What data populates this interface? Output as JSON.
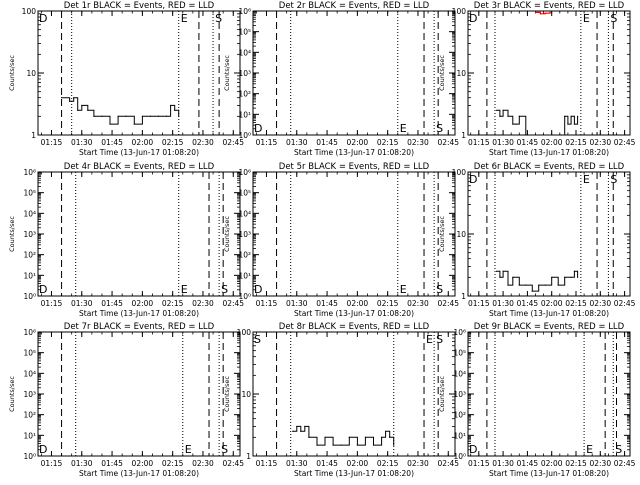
{
  "chart_data": [
    {
      "type": "line",
      "title": "Det 1r BLACK = Events, RED = LLD",
      "xlabel": "Start Time (13-Jun-17 01:08:20)",
      "ylabel": "Counts/sec",
      "yscale": "log",
      "ylim": [
        1,
        100
      ],
      "yticks": [
        "1",
        "10",
        "100"
      ],
      "xticks": [
        "01:15",
        "01:30",
        "01:45",
        "02:00",
        "02:15",
        "02:30",
        "02:45"
      ],
      "xlim": [
        "01:08:20",
        "02:48:20"
      ],
      "markers": {
        "dashed": [
          "01:20",
          "02:28",
          "02:38"
        ],
        "dotted": [
          "01:25",
          "02:18",
          "02:35"
        ]
      },
      "marker_labels": [
        {
          "text": "D",
          "at": "left-top"
        },
        {
          "text": "E",
          "at": "02:18"
        },
        {
          "text": "S",
          "at": "02:35"
        }
      ],
      "series": [
        {
          "color": "#000000",
          "x": [
            "01:20",
            "01:24",
            "01:26",
            "01:28",
            "01:30",
            "01:33",
            "01:36",
            "01:40",
            "01:44",
            "01:48",
            "01:52",
            "01:56",
            "02:00",
            "02:04",
            "02:08",
            "02:12",
            "02:14",
            "02:16",
            "02:18"
          ],
          "values": [
            4,
            3.5,
            4,
            2.5,
            3,
            2.5,
            2,
            2,
            1.5,
            2,
            2,
            1.5,
            2,
            2,
            2,
            2,
            3,
            2.5,
            2
          ]
        }
      ]
    },
    {
      "type": "line",
      "title": "Det 2r BLACK = Events, RED = LLD",
      "xlabel": "Start Time (13-Jun-17 01:08:20)",
      "ylabel": "Counts/sec",
      "yscale": "log",
      "ylim": [
        1,
        1000000
      ],
      "yticks": [
        "10⁰",
        "10¹",
        "10²",
        "10³",
        "10⁴",
        "10⁵",
        "10⁶"
      ],
      "xticks": [
        "01:15",
        "01:30",
        "01:45",
        "02:00",
        "02:15",
        "02:30",
        "02:45"
      ],
      "xlim": [
        "01:08:20",
        "02:48:20"
      ],
      "markers": {
        "dashed": [
          "01:20",
          "02:33",
          "02:40"
        ],
        "dotted": [
          "01:27",
          "02:20",
          "02:38"
        ]
      },
      "marker_labels": [
        {
          "text": "D",
          "at": "left-bottom"
        },
        {
          "text": "E",
          "at": "02:20"
        },
        {
          "text": "S",
          "at": "02:38"
        }
      ],
      "series": []
    },
    {
      "type": "line",
      "title": "Det 3r BLACK = Events, RED = LLD",
      "xlabel": "Start Time (13-Jun-17 01:08:20)",
      "ylabel": "Counts/sec",
      "yscale": "log",
      "ylim": [
        1,
        100
      ],
      "yticks": [
        "1",
        "10",
        "100"
      ],
      "xticks": [
        "01:15",
        "01:30",
        "01:45",
        "02:00",
        "02:15",
        "02:30",
        "02:45"
      ],
      "xlim": [
        "01:08:20",
        "02:48:20"
      ],
      "markers": {
        "dashed": [
          "01:20",
          "02:28",
          "02:38"
        ],
        "dotted": [
          "01:25",
          "02:18",
          "02:35"
        ]
      },
      "marker_labels": [
        {
          "text": "D",
          "at": "left-top"
        },
        {
          "text": "E",
          "at": "02:18"
        },
        {
          "text": "S",
          "at": "02:35"
        }
      ],
      "series": [
        {
          "color": "#000000",
          "x": [
            "01:26",
            "01:28",
            "01:30",
            "01:33",
            "01:36",
            "01:38",
            "01:40",
            "01:44",
            "02:06",
            "02:08",
            "02:10",
            "02:12",
            "02:14",
            "02:16"
          ],
          "values": [
            2.5,
            2,
            2.5,
            2,
            1.5,
            1.5,
            2,
            1,
            1,
            2,
            1.5,
            2,
            1.5,
            2
          ]
        },
        {
          "color": "#ff0000",
          "x": [
            "01:50",
            "01:53",
            "01:56",
            "01:59"
          ],
          "values": [
            95,
            90,
            92,
            96
          ]
        }
      ]
    },
    {
      "type": "line",
      "title": "Det 4r BLACK = Events, RED = LLD",
      "xlabel": "Start Time (13-Jun-17 01:08:20)",
      "ylabel": "Counts/sec",
      "yscale": "log",
      "ylim": [
        1,
        1000000
      ],
      "yticks": [
        "10⁰",
        "10¹",
        "10²",
        "10³",
        "10⁴",
        "10⁵",
        "10⁶"
      ],
      "xticks": [
        "01:15",
        "01:30",
        "01:45",
        "02:00",
        "02:15",
        "02:30",
        "02:45"
      ],
      "xlim": [
        "01:08:20",
        "02:48:20"
      ],
      "markers": {
        "dashed": [
          "01:20",
          "02:33",
          "02:40"
        ],
        "dotted": [
          "01:27",
          "02:18",
          "02:38"
        ]
      },
      "marker_labels": [
        {
          "text": "D",
          "at": "left-bottom"
        },
        {
          "text": "E",
          "at": "02:18"
        },
        {
          "text": "S",
          "at": "02:38"
        }
      ],
      "series": []
    },
    {
      "type": "line",
      "title": "Det 5r BLACK = Events, RED = LLD",
      "xlabel": "Start Time (13-Jun-17 01:08:20)",
      "ylabel": "Counts/sec",
      "yscale": "log",
      "ylim": [
        1,
        1000000
      ],
      "yticks": [
        "10⁰",
        "10¹",
        "10²",
        "10³",
        "10⁴",
        "10⁵",
        "10⁶"
      ],
      "xticks": [
        "01:15",
        "01:30",
        "01:45",
        "02:00",
        "02:15",
        "02:30",
        "02:45"
      ],
      "xlim": [
        "01:08:20",
        "02:48:20"
      ],
      "markers": {
        "dashed": [
          "01:20",
          "02:33",
          "02:40"
        ],
        "dotted": [
          "01:27",
          "02:20",
          "02:38"
        ]
      },
      "marker_labels": [
        {
          "text": "D",
          "at": "left-bottom"
        },
        {
          "text": "E",
          "at": "02:20"
        },
        {
          "text": "S",
          "at": "02:38"
        }
      ],
      "series": []
    },
    {
      "type": "line",
      "title": "Det 6r BLACK = Events, RED = LLD",
      "xlabel": "Start Time (13-Jun-17 01:08:20)",
      "ylabel": "Counts/sec",
      "yscale": "log",
      "ylim": [
        1,
        100
      ],
      "yticks": [
        "1",
        "10",
        "100"
      ],
      "xticks": [
        "01:15",
        "01:30",
        "01:45",
        "02:00",
        "02:15",
        "02:30",
        "02:45"
      ],
      "xlim": [
        "01:08:20",
        "02:48:20"
      ],
      "markers": {
        "dashed": [
          "01:20",
          "02:28",
          "02:38"
        ],
        "dotted": [
          "01:25",
          "02:18",
          "02:35"
        ]
      },
      "marker_labels": [
        {
          "text": "D",
          "at": "left-top"
        },
        {
          "text": "E",
          "at": "02:18"
        },
        {
          "text": "S",
          "at": "02:35"
        }
      ],
      "series": [
        {
          "color": "#000000",
          "x": [
            "01:26",
            "01:28",
            "01:30",
            "01:33",
            "01:36",
            "01:40",
            "01:44",
            "01:48",
            "01:52",
            "01:56",
            "02:00",
            "02:04",
            "02:08",
            "02:12",
            "02:14",
            "02:16"
          ],
          "values": [
            2.5,
            2,
            2.5,
            1.5,
            2,
            1.5,
            1.5,
            1.2,
            1.5,
            1.5,
            2,
            1.5,
            2,
            2,
            2.5,
            2
          ]
        }
      ]
    },
    {
      "type": "line",
      "title": "Det 7r BLACK = Events, RED = LLD",
      "xlabel": "Start Time (13-Jun-17 01:08:20)",
      "ylabel": "Counts/sec",
      "yscale": "log",
      "ylim": [
        1,
        1000000
      ],
      "yticks": [
        "10⁰",
        "10¹",
        "10²",
        "10³",
        "10⁴",
        "10⁵",
        "10⁶"
      ],
      "xticks": [
        "01:15",
        "01:30",
        "01:45",
        "02:00",
        "02:15",
        "02:30",
        "02:45"
      ],
      "xlim": [
        "01:08:20",
        "02:48:20"
      ],
      "markers": {
        "dashed": [
          "01:20",
          "02:33",
          "02:40"
        ],
        "dotted": [
          "01:27",
          "02:20",
          "02:38"
        ]
      },
      "marker_labels": [
        {
          "text": "D",
          "at": "left-bottom"
        },
        {
          "text": "E",
          "at": "02:20"
        },
        {
          "text": "S",
          "at": "02:38"
        }
      ],
      "series": []
    },
    {
      "type": "line",
      "title": "Det 8r BLACK = Events, RED = LLD",
      "xlabel": "Start Time (13-Jun-17 01:08:20)",
      "ylabel": "Counts/sec",
      "yscale": "log",
      "ylim": [
        1,
        100
      ],
      "yticks": [
        "1",
        "10",
        "100"
      ],
      "xticks": [
        "01:15",
        "01:30",
        "01:45",
        "02:00",
        "02:15",
        "02:30",
        "02:45"
      ],
      "xlim": [
        "01:08:20",
        "02:48:20"
      ],
      "markers": {
        "dashed": [
          "01:20",
          "02:33",
          "02:40"
        ],
        "dotted": [
          "01:27",
          "02:18",
          "02:38"
        ]
      },
      "marker_labels": [
        {
          "text": "S",
          "at": "left-top"
        },
        {
          "text": "E",
          "at": "02:33"
        },
        {
          "text": "S",
          "at": "02:38"
        }
      ],
      "series": [
        {
          "color": "#000000",
          "x": [
            "01:28",
            "01:30",
            "01:32",
            "01:34",
            "01:36",
            "01:40",
            "01:44",
            "01:48",
            "01:52",
            "01:56",
            "02:00",
            "02:04",
            "02:08",
            "02:12",
            "02:14",
            "02:16",
            "02:18"
          ],
          "values": [
            2.5,
            3,
            2.5,
            3,
            2,
            1.5,
            2,
            1.5,
            1.5,
            2,
            1.5,
            2,
            1.5,
            2,
            2.5,
            2,
            1.5
          ]
        }
      ]
    },
    {
      "type": "line",
      "title": "Det 9r BLACK = Events, RED = LLD",
      "xlabel": "Start Time (13-Jun-17 01:08:20)",
      "ylabel": "Counts/sec",
      "yscale": "log",
      "ylim": [
        1,
        1000000
      ],
      "yticks": [
        "10⁰",
        "10¹",
        "10²",
        "10³",
        "10⁴",
        "10⁵",
        "10⁶"
      ],
      "xticks": [
        "01:15",
        "01:30",
        "01:45",
        "02:00",
        "02:15",
        "02:30",
        "02:45"
      ],
      "xlim": [
        "01:08:20",
        "02:48:20"
      ],
      "markers": {
        "dashed": [
          "01:20",
          "02:33",
          "02:40"
        ],
        "dotted": [
          "01:25",
          "02:20",
          "02:38"
        ]
      },
      "marker_labels": [
        {
          "text": "D",
          "at": "left-bottom"
        },
        {
          "text": "E",
          "at": "02:20"
        },
        {
          "text": "S",
          "at": "02:38"
        }
      ],
      "series": []
    }
  ]
}
